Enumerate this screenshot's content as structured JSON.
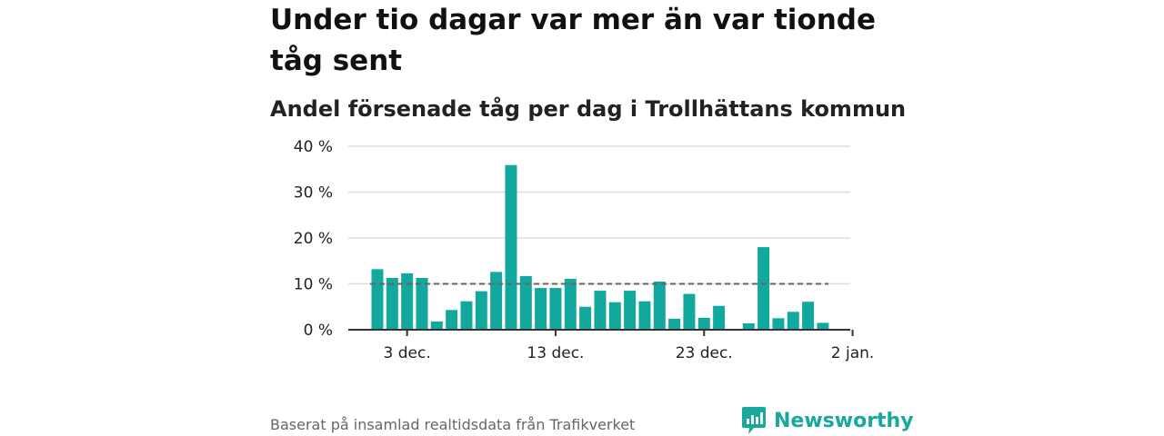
{
  "title": "Under tio dagar var mer än var tionde tåg sent",
  "subtitle": "Andel försenade tåg per dag i Trollhättans kommun",
  "source": "Baserat på insamlad realtidsdata från Trafikverket",
  "brand": {
    "name": "Newsworthy",
    "icon": "newsworthy-logo-icon",
    "color": "#1aa79c"
  },
  "colors": {
    "bar": "#13a89e",
    "grid": "#dddddd",
    "reference_line": "#666666",
    "axis": "#333333"
  },
  "chart_data": {
    "type": "bar",
    "x": [
      "2019-12-01",
      "2019-12-02",
      "2019-12-03",
      "2019-12-04",
      "2019-12-05",
      "2019-12-06",
      "2019-12-07",
      "2019-12-08",
      "2019-12-09",
      "2019-12-10",
      "2019-12-11",
      "2019-12-12",
      "2019-12-13",
      "2019-12-14",
      "2019-12-15",
      "2019-12-16",
      "2019-12-17",
      "2019-12-18",
      "2019-12-19",
      "2019-12-20",
      "2019-12-21",
      "2019-12-22",
      "2019-12-23",
      "2019-12-24",
      "2019-12-25",
      "2019-12-26",
      "2019-12-27",
      "2019-12-28",
      "2019-12-29",
      "2019-12-30",
      "2019-12-31",
      "2020-01-01"
    ],
    "values": [
      13.2,
      11.3,
      12.3,
      11.3,
      1.8,
      4.3,
      6.2,
      8.4,
      12.6,
      35.9,
      11.7,
      9.1,
      9.1,
      11.1,
      5.0,
      8.5,
      6.0,
      8.5,
      6.2,
      10.5,
      2.4,
      7.8,
      2.6,
      5.2,
      null,
      1.4,
      18.0,
      2.5,
      3.9,
      6.1,
      1.5,
      null
    ],
    "reference_line": 10,
    "ylim": [
      0,
      40
    ],
    "yticks": [
      "0 %",
      "10 %",
      "20 %",
      "30 %",
      "40 %"
    ],
    "xticks": [
      "3 dec.",
      "13 dec.",
      "23 dec.",
      "2 jan."
    ],
    "grid": true
  }
}
